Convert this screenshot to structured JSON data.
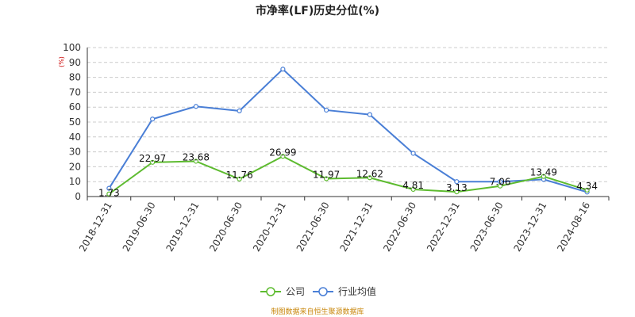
{
  "chart_data": {
    "type": "line",
    "title": "市净率(LF)历史分位(%)",
    "ylabel": "(%)",
    "ylim": [
      0,
      100
    ],
    "yticks": [
      "0",
      "10",
      "20",
      "30",
      "40",
      "50",
      "60",
      "70",
      "80",
      "90",
      "100"
    ],
    "categories": [
      "2018-12-31",
      "2019-06-30",
      "2019-12-31",
      "2020-06-30",
      "2020-12-31",
      "2021-06-30",
      "2021-12-31",
      "2022-06-30",
      "2022-12-31",
      "2023-06-30",
      "2023-12-31",
      "2024-08-16"
    ],
    "series": [
      {
        "name": "公司",
        "color": "#5dbb2f",
        "values": [
          1.73,
          22.97,
          23.68,
          11.76,
          26.99,
          11.97,
          12.62,
          4.81,
          3.13,
          7.06,
          13.49,
          4.34
        ],
        "labels": [
          "1.73",
          "22.97",
          "23.68",
          "11.76",
          "26.99",
          "11.97",
          "12.62",
          "4.81",
          "3.13",
          "7.06",
          "13.49",
          "4.34"
        ]
      },
      {
        "name": "行业均值",
        "color": "#4a7fd6",
        "values": [
          5.5,
          52,
          60.5,
          57.5,
          85.5,
          58,
          55,
          29,
          10,
          10,
          11.5,
          3
        ]
      }
    ],
    "grid": true,
    "legend_position": "bottom-center",
    "source": "制图数据来自恒生聚源数据库"
  }
}
